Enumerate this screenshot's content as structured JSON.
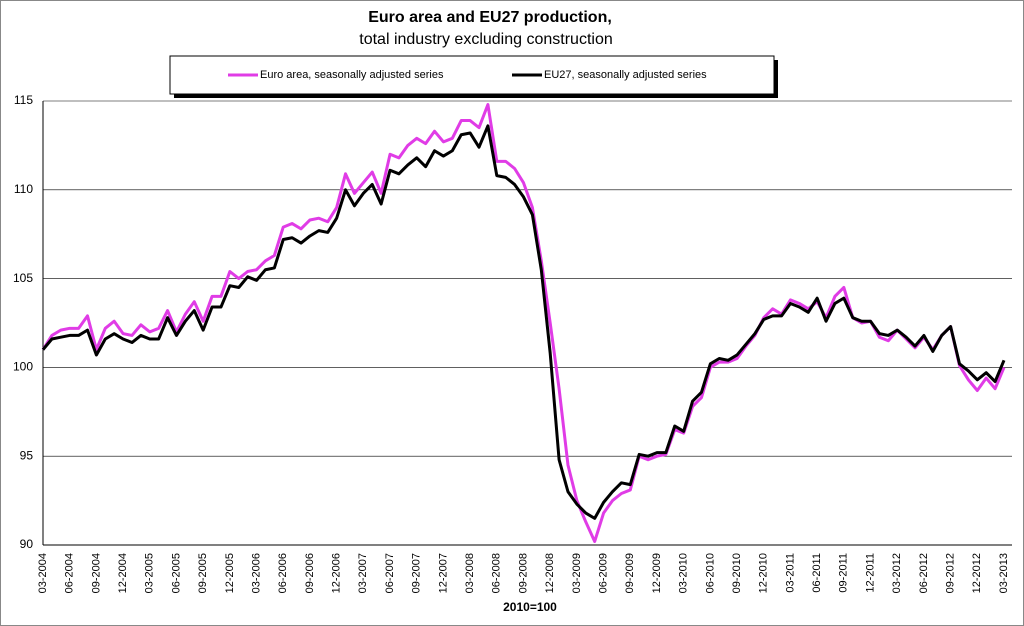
{
  "chart_data": {
    "type": "line",
    "title": "Euro area and EU27 production,",
    "subtitle": "total industry excluding construction",
    "xlabel": "2010=100",
    "legend": "top",
    "grid": true,
    "categories": [
      "03-2004",
      null,
      null,
      "06-2004",
      null,
      null,
      "09-2004",
      null,
      null,
      "12-2004",
      null,
      null,
      "03-2005",
      null,
      null,
      "06-2005",
      null,
      null,
      "09-2005",
      null,
      null,
      "12-2005",
      null,
      null,
      "03-2006",
      null,
      null,
      "06-2006",
      null,
      null,
      "09-2006",
      null,
      null,
      "12-2006",
      null,
      null,
      "03-2007",
      null,
      null,
      "06-2007",
      null,
      null,
      "09-2007",
      null,
      null,
      "12-2007",
      null,
      null,
      "03-2008",
      null,
      null,
      "06-2008",
      null,
      null,
      "09-2008",
      null,
      null,
      "12-2008",
      null,
      null,
      "03-2009",
      null,
      null,
      "06-2009",
      null,
      null,
      "09-2009",
      null,
      null,
      "12-2009",
      null,
      null,
      "03-2010",
      null,
      null,
      "06-2010",
      null,
      null,
      "09-2010",
      null,
      null,
      "12-2010",
      null,
      null,
      "03-2011",
      null,
      null,
      "06-2011",
      null,
      null,
      "09-2011",
      null,
      null,
      "12-2011",
      null,
      null,
      "03-2012",
      null,
      null,
      "06-2012",
      null,
      null,
      "09-2012",
      null,
      null,
      "12-2012",
      null,
      null,
      "03-2013"
    ],
    "series": [
      {
        "name": "Euro area, seasonally adjusted series",
        "color": "#e03ce6",
        "values": [
          101.0,
          101.8,
          102.1,
          102.2,
          102.2,
          102.9,
          101.0,
          102.2,
          102.6,
          101.9,
          101.8,
          102.4,
          102.0,
          102.2,
          103.2,
          102.0,
          103.0,
          103.7,
          102.6,
          104.0,
          104.0,
          105.4,
          105.0,
          105.4,
          105.5,
          106.0,
          106.3,
          107.9,
          108.1,
          107.8,
          108.3,
          108.4,
          108.2,
          109.0,
          110.9,
          109.8,
          110.4,
          111.0,
          109.8,
          112.0,
          111.8,
          112.5,
          112.9,
          112.6,
          113.3,
          112.7,
          112.9,
          113.9,
          113.9,
          113.5,
          114.8,
          111.6,
          111.6,
          111.2,
          110.4,
          109.0,
          106.0,
          102.5,
          98.8,
          94.5,
          92.5,
          91.3,
          90.2,
          91.8,
          92.5,
          92.9,
          93.1,
          95.0,
          94.8,
          95.0,
          95.1,
          96.5,
          96.3,
          97.8,
          98.3,
          100.0,
          100.3,
          100.3,
          100.5,
          101.2,
          101.8,
          102.8,
          103.3,
          103.0,
          103.8,
          103.6,
          103.3,
          103.7,
          102.8,
          104.0,
          104.5,
          102.8,
          102.5,
          102.6,
          101.7,
          101.5,
          102.1,
          101.6,
          101.1,
          101.7,
          101.0,
          101.8,
          102.3,
          100.1,
          99.3,
          98.7,
          99.4,
          98.8,
          100.0
        ]
      },
      {
        "name": "EU27, seasonally adjusted series",
        "color": "#000000",
        "values": [
          101.0,
          101.6,
          101.7,
          101.8,
          101.8,
          102.1,
          100.7,
          101.6,
          101.9,
          101.6,
          101.4,
          101.8,
          101.6,
          101.6,
          102.8,
          101.8,
          102.6,
          103.2,
          102.1,
          103.4,
          103.4,
          104.6,
          104.5,
          105.1,
          104.9,
          105.5,
          105.6,
          107.2,
          107.3,
          107.0,
          107.4,
          107.7,
          107.6,
          108.4,
          110.0,
          109.1,
          109.8,
          110.3,
          109.2,
          111.1,
          110.9,
          111.4,
          111.8,
          111.3,
          112.2,
          111.9,
          112.2,
          113.1,
          113.2,
          112.4,
          113.6,
          110.8,
          110.7,
          110.3,
          109.6,
          108.6,
          105.5,
          100.8,
          94.8,
          93.0,
          92.3,
          91.8,
          91.5,
          92.4,
          93.0,
          93.5,
          93.4,
          95.1,
          95.0,
          95.2,
          95.2,
          96.7,
          96.4,
          98.1,
          98.6,
          100.2,
          100.5,
          100.4,
          100.7,
          101.3,
          101.9,
          102.7,
          102.9,
          102.9,
          103.6,
          103.4,
          103.1,
          103.9,
          102.6,
          103.6,
          103.9,
          102.8,
          102.6,
          102.6,
          101.9,
          101.8,
          102.1,
          101.7,
          101.2,
          101.8,
          100.9,
          101.8,
          102.3,
          100.2,
          99.8,
          99.3,
          99.7,
          99.2,
          100.4
        ]
      }
    ],
    "ylim": [
      90,
      115
    ],
    "yticks": [
      90,
      95,
      100,
      105,
      110,
      115
    ]
  }
}
